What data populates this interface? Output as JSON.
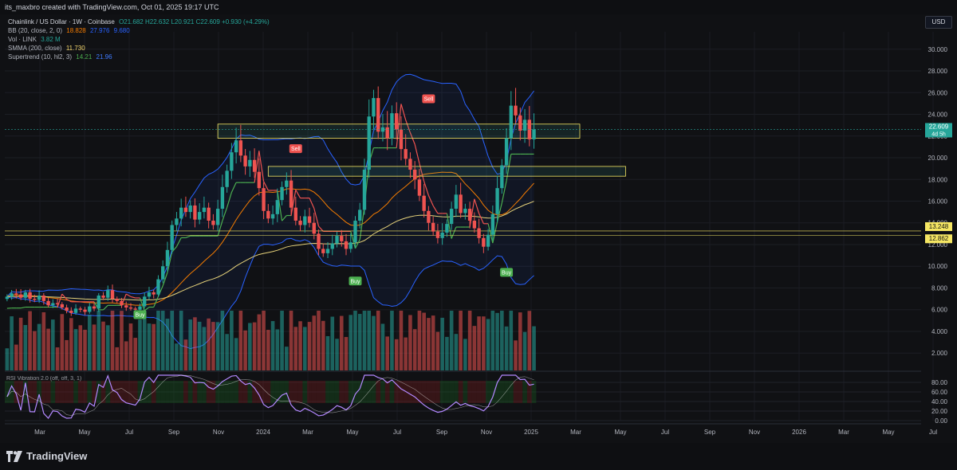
{
  "header": {
    "attribution": "its_maxbro created with TradingView.com, Oct 01, 2025 19:17 UTC",
    "currency": "USD",
    "brand": "TradingView"
  },
  "legend": {
    "symbol": "Chainlink / US Dollar · 1W · Coinbase",
    "ohlc": "O21.682 H22.632 L20.921 C22.609 +0.930 (+4.29%)",
    "bb_name": "BB (20, close, 2, 0)",
    "bb_basis": "18.828",
    "bb_upper": "27.976",
    "bb_lower": "9.680",
    "vol_name": "Vol · LINK",
    "vol_value": "3.82 M",
    "smma_name": "SMMA (200, close)",
    "smma_value": "11.730",
    "st_name": "Supertrend (10, hl2, 3)",
    "st_up": "14.21",
    "st_dn": "21.96"
  },
  "oscillator_label": "RSI Vibration 2.0 (off, off, 3, 1)",
  "colors": {
    "background": "#101114",
    "candle_up": "#26a69a",
    "candle_down": "#ef5350",
    "bb_band": "#2962ff",
    "bb_basis": "#f57c00",
    "smma": "#e6d27a",
    "supertrend_up": "#4caf50",
    "supertrend_down": "#ef5350",
    "zone": "#f5e663"
  },
  "chart_data": {
    "type": "candlestick",
    "x_ticks": [
      "Mar",
      "May",
      "Jul",
      "Sep",
      "Nov",
      "2024",
      "Mar",
      "May",
      "Jul",
      "Sep",
      "Nov",
      "2025",
      "Mar",
      "May",
      "Jul",
      "Sep",
      "Nov",
      "2026",
      "Mar",
      "May",
      "Jul"
    ],
    "y_ticks": [
      2,
      4,
      6,
      8,
      10,
      12,
      14,
      16,
      18,
      20,
      22,
      24,
      26,
      28,
      30
    ],
    "y_tick_labels": [
      "2.000",
      "4.000",
      "6.000",
      "8.000",
      "10.000",
      "12.000",
      "14.000",
      "16.000",
      "18.000",
      "20.000",
      "22.000",
      "24.000",
      "26.000",
      "28.000",
      "30.000"
    ],
    "ylim": [
      0.4,
      31.6
    ],
    "osc_ticks": [
      "0.00",
      "20.00",
      "40.00",
      "60.00",
      "80.00"
    ],
    "last_price": {
      "value": 22.609,
      "label": "22.609",
      "countdown": "4d 5h"
    },
    "level_labels": [
      {
        "value": 13.248,
        "label": "13.248"
      },
      {
        "value": 12.862,
        "label": "12.862"
      }
    ],
    "signals": [
      {
        "label": "Buy",
        "week": 29,
        "price": 5.5
      },
      {
        "label": "Buy",
        "week": 76,
        "price": 8.6
      },
      {
        "label": "Buy",
        "week": 109,
        "price": 9.4
      },
      {
        "label": "Sell",
        "week": 63,
        "price": 20.8
      },
      {
        "label": "Sell",
        "week": 92,
        "price": 25.4
      }
    ],
    "zones": [
      {
        "from_week": 46,
        "to_week": 125,
        "low": 21.8,
        "high": 23.1
      },
      {
        "from_week": 57,
        "to_week": 135,
        "low": 18.3,
        "high": 19.2
      }
    ],
    "closes": [
      7.2,
      7.5,
      7.4,
      7.1,
      7.6,
      7.0,
      6.9,
      7.3,
      6.8,
      6.4,
      6.6,
      6.5,
      6.2,
      5.9,
      5.7,
      6.1,
      6.0,
      5.8,
      6.3,
      6.1,
      7.3,
      7.1,
      7.8,
      7.0,
      6.8,
      6.4,
      6.2,
      6.1,
      6.0,
      6.3,
      7.2,
      7.6,
      7.4,
      8.8,
      10.0,
      11.5,
      13.8,
      14.4,
      15.4,
      15.0,
      15.6,
      14.3,
      15.0,
      15.4,
      14.2,
      13.8,
      15.3,
      17.3,
      18.8,
      20.5,
      21.6,
      20.2,
      19.2,
      19.8,
      18.7,
      17.2,
      15.1,
      14.4,
      14.8,
      16.1,
      17.3,
      17.9,
      15.4,
      14.2,
      13.8,
      14.6,
      14.0,
      13.0,
      11.6,
      11.2,
      11.6,
      12.1,
      12.8,
      12.3,
      11.6,
      12.2,
      14.2,
      15.2,
      18.9,
      23.8,
      25.5,
      22.4,
      22.8,
      21.8,
      24.1,
      22.6,
      20.8,
      19.9,
      18.9,
      18.0,
      16.5,
      15.1,
      14.0,
      13.2,
      12.6,
      13.1,
      13.9,
      15.3,
      16.6,
      14.9,
      15.3,
      14.2,
      13.5,
      12.6,
      11.8,
      12.9,
      14.8,
      17.2,
      19.3,
      21.8,
      24.8,
      23.9,
      22.5,
      23.5,
      21.7,
      22.6
    ]
  }
}
